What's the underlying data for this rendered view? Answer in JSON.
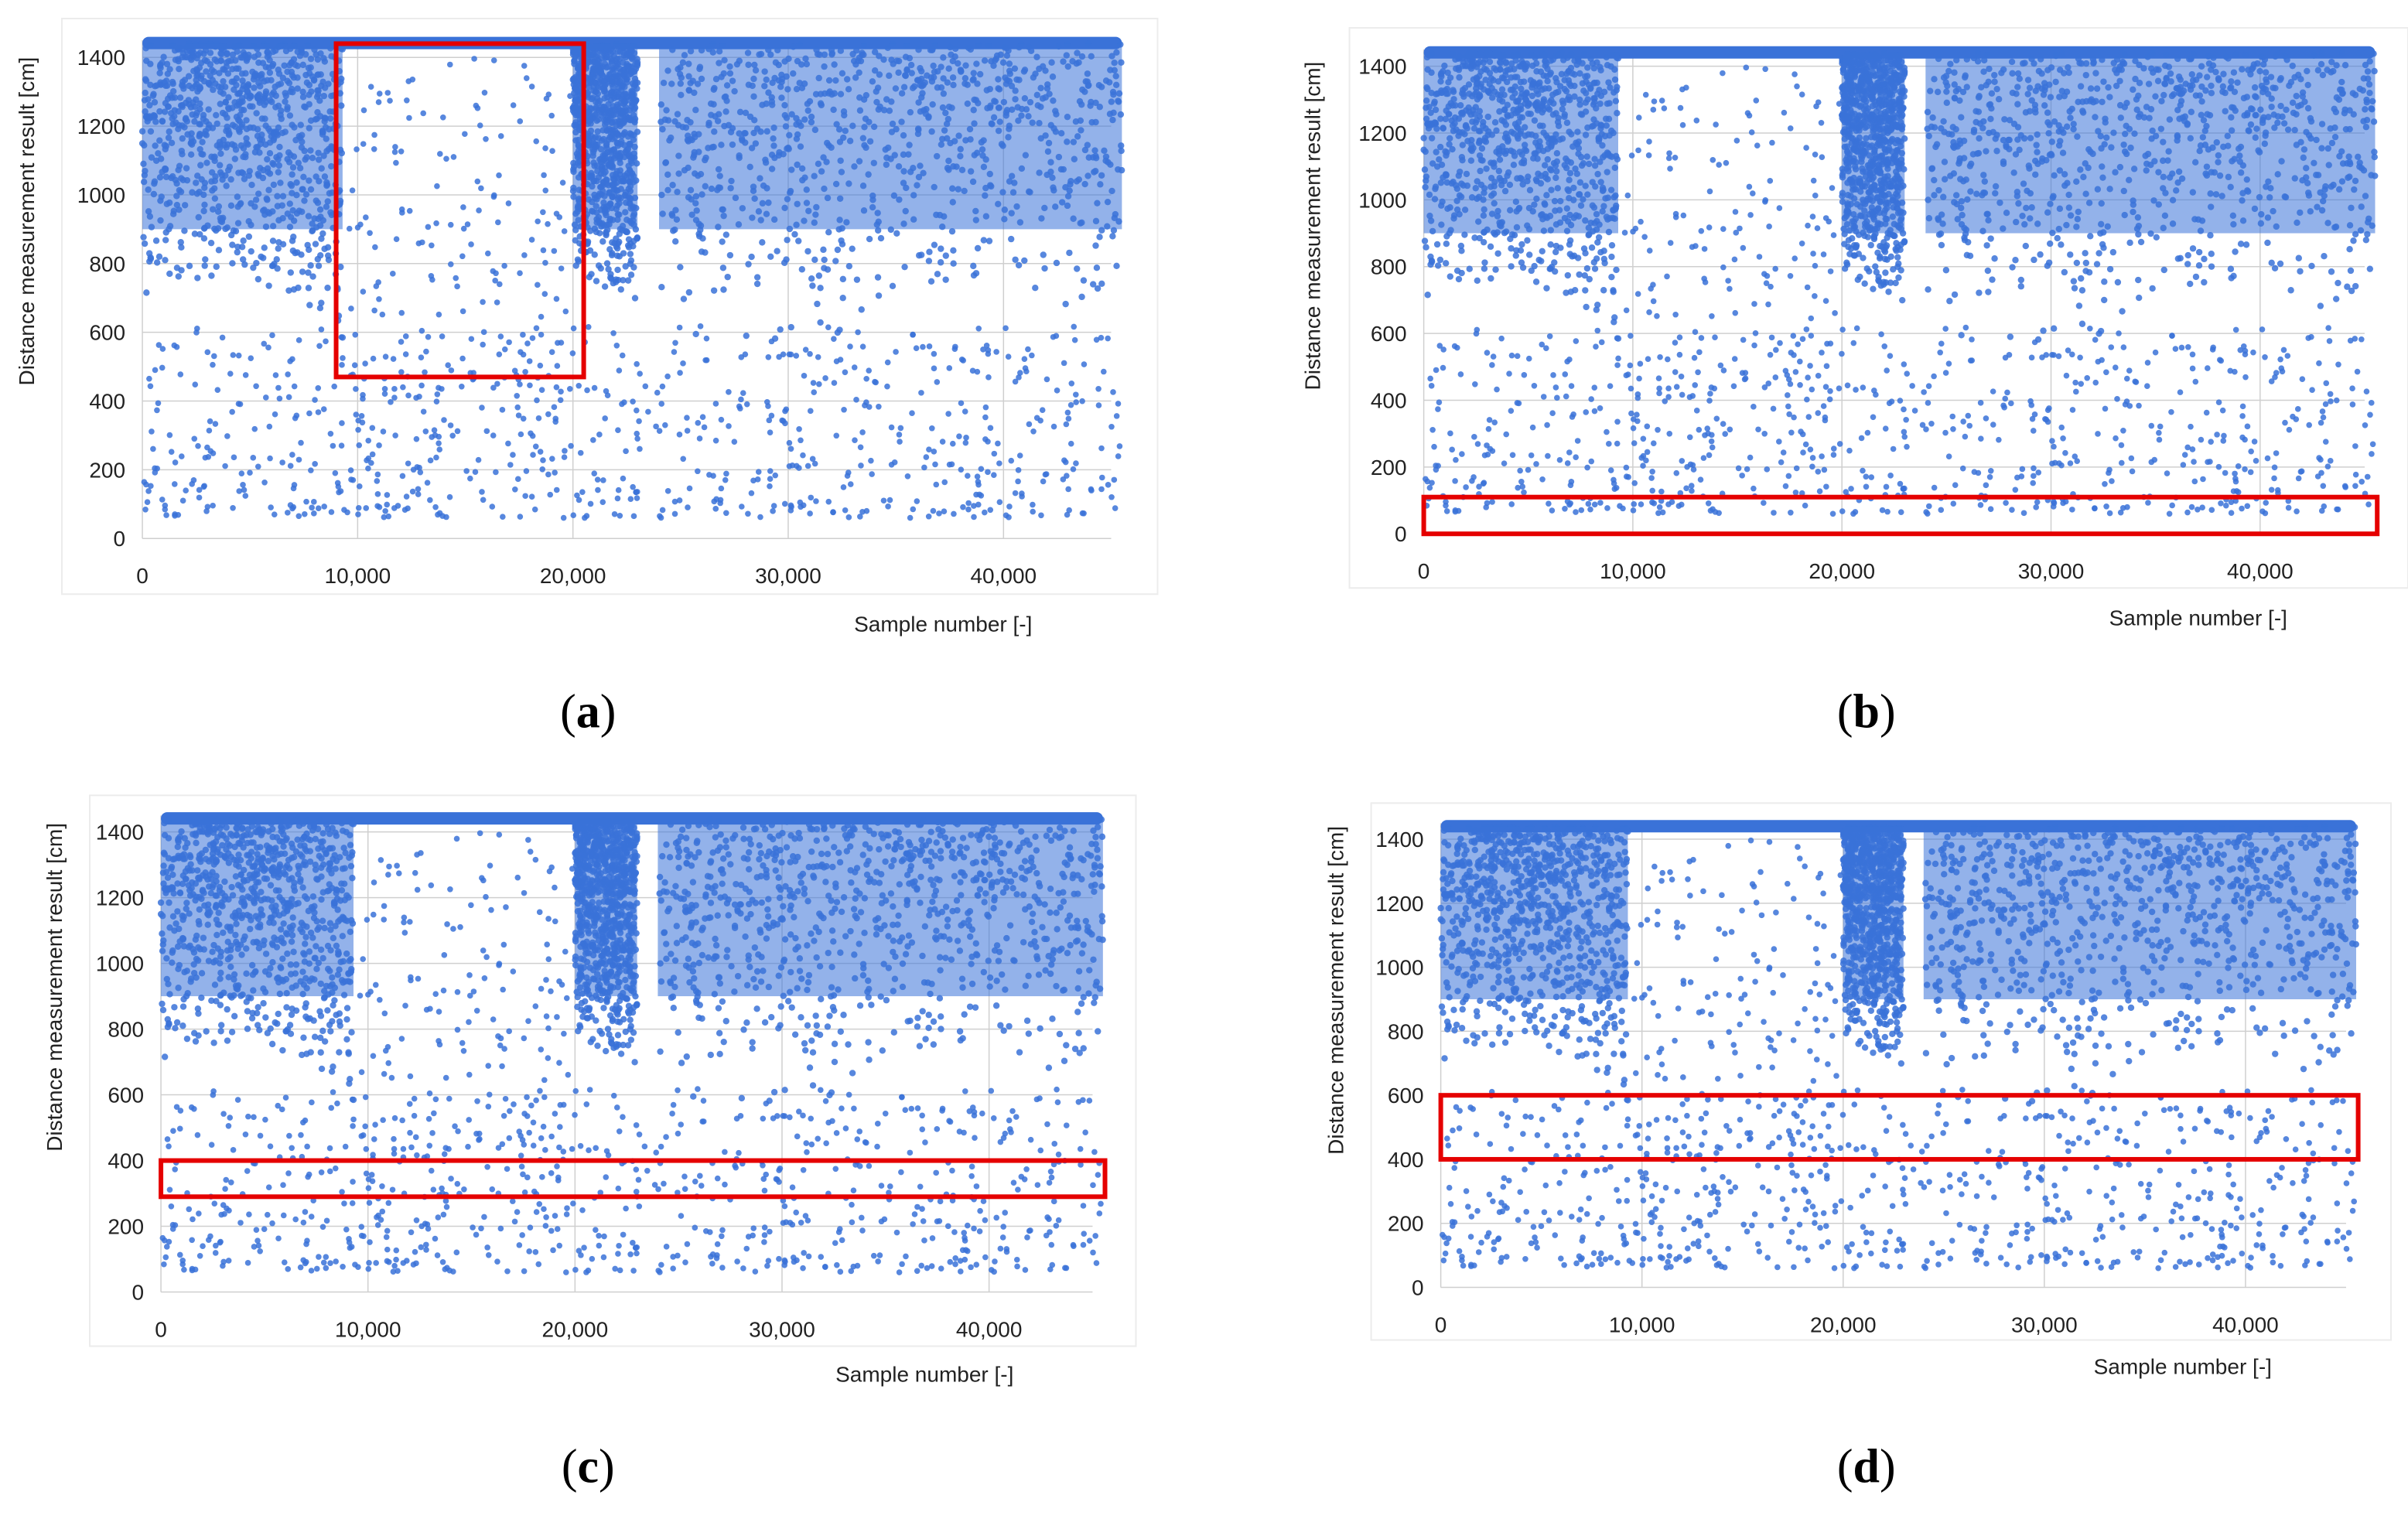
{
  "chart_data": [
    {
      "id": "a",
      "type": "scatter",
      "caption": "a",
      "xlabel": "Sample number [-]",
      "ylabel": "Distance measurement result [cm]",
      "xlim": [
        0,
        45000
      ],
      "ylim": [
        0,
        1450
      ],
      "xticks": [
        "0",
        "10,000",
        "20,000",
        "30,000",
        "40,000"
      ],
      "yticks": [
        "0",
        "200",
        "400",
        "600",
        "800",
        "1000",
        "1200",
        "1400"
      ],
      "grid": true,
      "series_color": "#3a72d8",
      "highlight": {
        "x": [
          9000,
          20500
        ],
        "y": [
          470,
          1440
        ],
        "color": "#e50000"
      }
    },
    {
      "id": "b",
      "type": "scatter",
      "caption": "b",
      "xlabel": "Sample number [-]",
      "ylabel": "Distance measurement result [cm]",
      "xlim": [
        0,
        45000
      ],
      "ylim": [
        0,
        1450
      ],
      "xticks": [
        "0",
        "10,000",
        "20,000",
        "30,000",
        "40,000"
      ],
      "yticks": [
        "0",
        "200",
        "400",
        "600",
        "800",
        "1000",
        "1200",
        "1400"
      ],
      "grid": true,
      "series_color": "#3a72d8",
      "highlight": {
        "x": [
          0,
          45600
        ],
        "y": [
          0,
          110
        ],
        "color": "#e50000"
      }
    },
    {
      "id": "c",
      "type": "scatter",
      "caption": "c",
      "xlabel": "Sample number [-]",
      "ylabel": "Distance measurement result [cm]",
      "xlim": [
        0,
        45000
      ],
      "ylim": [
        0,
        1450
      ],
      "xticks": [
        "0",
        "10,000",
        "20,000",
        "30,000",
        "40,000"
      ],
      "yticks": [
        "0",
        "200",
        "400",
        "600",
        "800",
        "1000",
        "1200",
        "1400"
      ],
      "grid": true,
      "series_color": "#3a72d8",
      "highlight": {
        "x": [
          0,
          45600
        ],
        "y": [
          290,
          400
        ],
        "color": "#e50000"
      }
    },
    {
      "id": "d",
      "type": "scatter",
      "caption": "d",
      "xlabel": "Sample number [-]",
      "ylabel": "Distance measurement result [cm]",
      "xlim": [
        0,
        45000
      ],
      "ylim": [
        0,
        1450
      ],
      "xticks": [
        "0",
        "10,000",
        "20,000",
        "30,000",
        "40,000"
      ],
      "yticks": [
        "0",
        "200",
        "400",
        "600",
        "800",
        "1000",
        "1200",
        "1400"
      ],
      "grid": true,
      "series_color": "#3a72d8",
      "highlight": {
        "x": [
          0,
          45600
        ],
        "y": [
          400,
          600
        ],
        "color": "#e50000"
      }
    }
  ]
}
